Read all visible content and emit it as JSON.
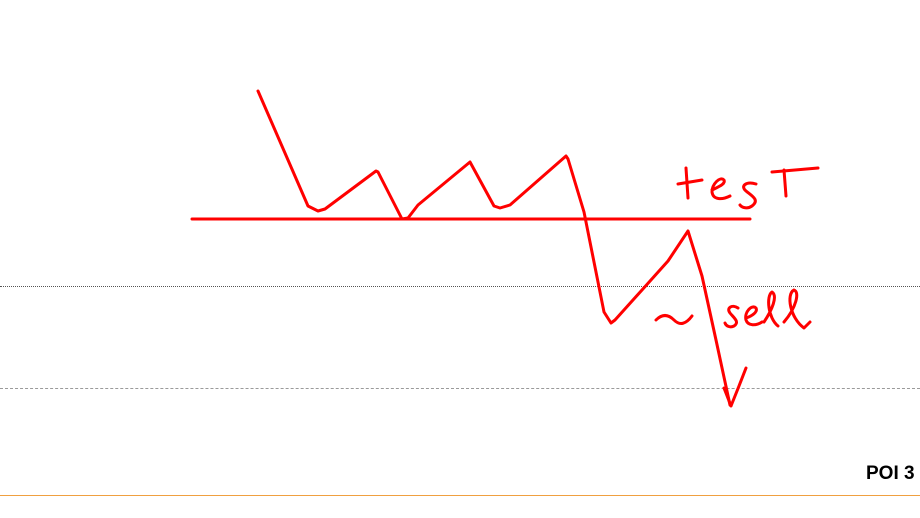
{
  "chart": {
    "price_level_label": "POI 3"
  },
  "annotation": {
    "stroke_color": "#ff0000",
    "handwritten_labels": [
      "test",
      "sell"
    ]
  },
  "guides": {
    "dotted_color": "#555555",
    "dashed_color": "#9a9a9a",
    "session_line_color": "#f0a040"
  }
}
